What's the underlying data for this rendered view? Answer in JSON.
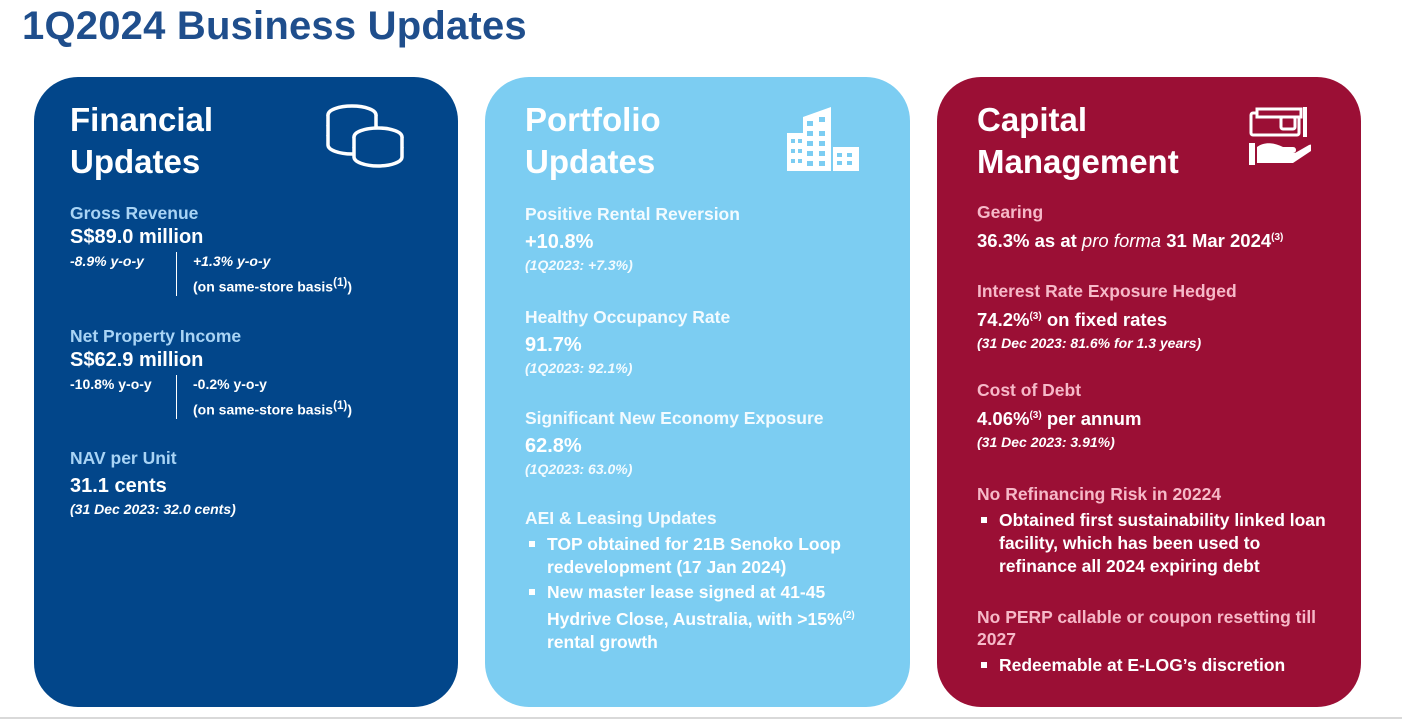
{
  "page_title": "1Q2024 Business Updates",
  "financial": {
    "title": "Financial\nUpdates",
    "icon": "coins-icon",
    "gross_revenue": {
      "label": "Gross Revenue",
      "value": "S$89.0 million",
      "change_left": "-8.9% y-o-y",
      "change_right": "+1.3% y-o-y",
      "change_right_note": "(on same-store basis",
      "note_ref": "(1)",
      "close": ")"
    },
    "npi": {
      "label": "Net Property Income",
      "value": "S$62.9 million",
      "change_left": "-10.8% y-o-y",
      "change_right": "-0.2% y-o-y",
      "change_right_note": "(on same-store basis",
      "note_ref": "(1)",
      "close": ")"
    },
    "nav": {
      "label": "NAV per Unit",
      "value": "31.1 cents",
      "sub": "(31 Dec 2023: 32.0 cents)"
    }
  },
  "portfolio": {
    "title": "Portfolio\nUpdates",
    "icon": "buildings-icon",
    "reversion": {
      "label": "Positive Rental Reversion",
      "value": "+10.8%",
      "sub": "(1Q2023: +7.3%)"
    },
    "occupancy": {
      "label": "Healthy Occupancy Rate",
      "value": "91.7%",
      "sub": "(1Q2023: 92.1%)"
    },
    "new_economy": {
      "label": "Significant New Economy Exposure",
      "value": "62.8%",
      "sub": "(1Q2023: 63.0%)"
    },
    "aei": {
      "label": "AEI & Leasing Updates",
      "bullet1": "TOP obtained for 21B Senoko Loop redevelopment (17 Jan 2024)",
      "bullet2_pre": "New master lease signed at 41-45 Hydrive Close, Australia, with >15%",
      "bullet2_ref": "(2)",
      "bullet2_post": " rental growth"
    }
  },
  "capital": {
    "title": "Capital\nManagement",
    "icon": "money-hand-icon",
    "gearing": {
      "label": "Gearing",
      "value_pre": "36.3% ",
      "value_mid": "as at ",
      "value_italic": "pro forma",
      "value_post": " 31 Mar 2024",
      "ref": "(3)"
    },
    "hedged": {
      "label": "Interest Rate Exposure Hedged",
      "value_pre": "74.2%",
      "ref": "(3)",
      "value_post": " on fixed rates",
      "sub": "(31 Dec 2023: 81.6% for 1.3 years)"
    },
    "cost_of_debt": {
      "label": "Cost of Debt",
      "value_pre": "4.06%",
      "ref": "(3)",
      "value_post": " per annum",
      "sub": "(31 Dec 2023: 3.91%)"
    },
    "refinancing": {
      "label": "No Refinancing Risk in 20224",
      "bullet": "Obtained first sustainability linked loan facility, which has been used to refinance all 2024 expiring debt"
    },
    "perp": {
      "label": "No PERP callable or coupon resetting till 2027",
      "bullet": "Redeemable at E-LOG’s discretion"
    }
  },
  "colors": {
    "title_blue": "#1f4e8c",
    "financial_bg": "#02468a",
    "portfolio_bg": "#7ccdf2",
    "capital_bg": "#9b0f35"
  }
}
